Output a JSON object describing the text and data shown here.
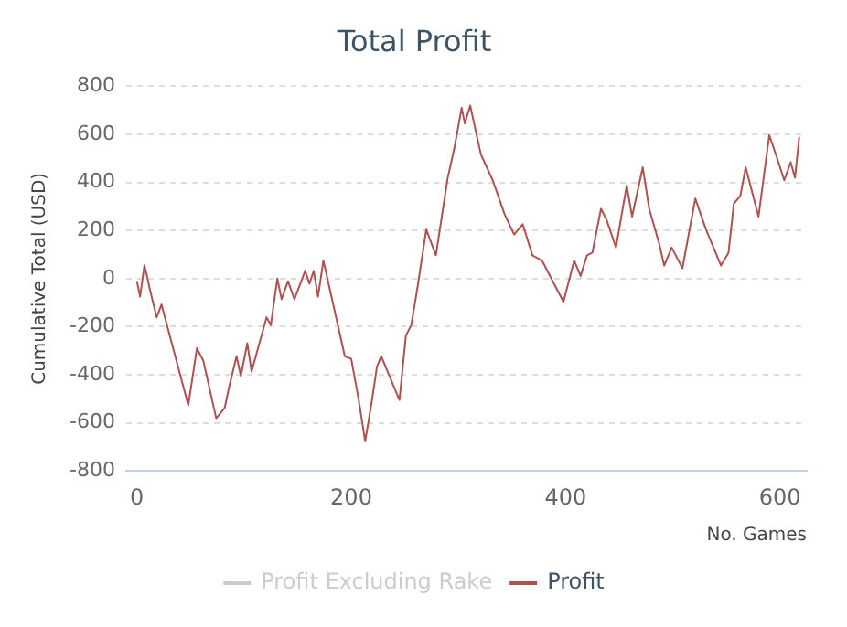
{
  "chart_data": {
    "type": "line",
    "title": "Total Profit",
    "xlabel": "No. Games",
    "ylabel": "Cumulative Total (USD)",
    "xlim": [
      -10,
      625
    ],
    "xticks": [
      0,
      200,
      400,
      600
    ],
    "ylim": [
      -800,
      800
    ],
    "yticks": [
      -800,
      -600,
      -400,
      -200,
      0,
      200,
      400,
      600,
      800
    ],
    "grid": "y",
    "legend": "bottom",
    "marker": "none",
    "line_style": "solid",
    "series": [
      {
        "name": "Profit Excluding Rake",
        "color": "#cccccc"
      },
      {
        "name": "Profit",
        "color": "#b05050",
        "x": [
          0,
          3,
          7,
          9,
          12,
          18.5,
          23,
          48,
          56,
          62,
          74,
          82,
          86,
          93,
          97,
          103,
          107,
          121,
          125,
          131,
          135,
          141,
          147,
          157,
          161,
          165,
          169,
          174,
          194,
          200,
          207,
          213,
          219,
          224,
          228,
          239,
          245,
          251,
          256,
          262,
          270,
          279,
          290,
          296,
          303,
          306,
          311,
          321,
          332,
          343,
          352,
          360,
          369,
          378,
          388,
          398,
          408,
          414,
          420,
          425,
          433,
          438,
          447,
          457,
          462,
          472,
          478,
          487,
          492,
          499,
          509,
          521,
          531,
          545,
          552,
          557,
          563,
          568,
          580,
          590,
          597,
          604,
          610,
          614,
          618
        ],
        "values": [
          -10,
          -75,
          55,
          20,
          -43,
          -161,
          -108,
          -527,
          -290,
          -342,
          -581,
          -537,
          -452,
          -323,
          -406,
          -269,
          -387,
          -161,
          -194,
          0,
          -86,
          -11,
          -86,
          32,
          -21,
          32,
          -75,
          75,
          -323,
          -334,
          -505,
          -677,
          -516,
          -366,
          -323,
          -441,
          -505,
          -237,
          -194,
          -32,
          204,
          97,
          419,
          538,
          710,
          645,
          720,
          516,
          409,
          269,
          183,
          226,
          97,
          75,
          -11,
          -97,
          75,
          11,
          97,
          108,
          290,
          247,
          129,
          387,
          258,
          463,
          290,
          150,
          54,
          129,
          43,
          333,
          204,
          54,
          108,
          312,
          344,
          463,
          258,
          597,
          505,
          409,
          484,
          419,
          590
        ]
      }
    ]
  }
}
